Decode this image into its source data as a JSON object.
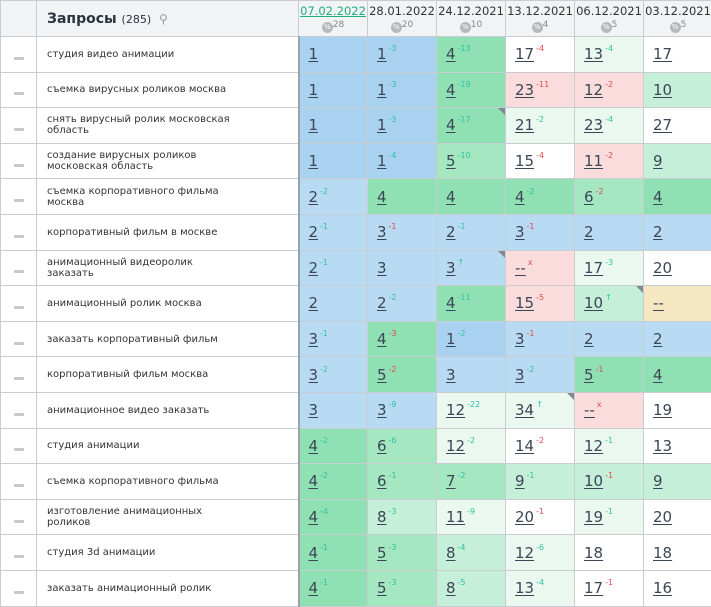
{
  "header": {
    "title": "Запросы",
    "count": "(285)",
    "search_icon": "search-icon",
    "dates": [
      {
        "label": "07.02.2022",
        "sup": "28"
      },
      {
        "label": "28.01.2022",
        "sup": "20"
      },
      {
        "label": "24.12.2021",
        "sup": "10"
      },
      {
        "label": "13.12.2021",
        "sup": "4"
      },
      {
        "label": "06.12.2021",
        "sup": "5"
      },
      {
        "label": "03.12.2021",
        "sup": "5"
      }
    ],
    "pct_symbol": "%"
  },
  "colors": {
    "up": "#2cc3a0",
    "down": "#e5484d",
    "active_date": "#1fae7a"
  },
  "rows": [
    {
      "q": "студия видео анимации",
      "cells": [
        [
          "1",
          "",
          "",
          "b1"
        ],
        [
          "1",
          "-3",
          "g",
          "b1"
        ],
        [
          "4",
          "-13",
          "g",
          "g1"
        ],
        [
          "17",
          "-4",
          "r",
          "w"
        ],
        [
          "13",
          "-4",
          "g",
          "p"
        ],
        [
          "17",
          "",
          "",
          "w"
        ]
      ]
    },
    {
      "q": "съемка вирусных роликов москва",
      "cells": [
        [
          "1",
          "",
          "",
          "b1"
        ],
        [
          "1",
          "-3",
          "g",
          "b1"
        ],
        [
          "4",
          "-19",
          "g",
          "g1"
        ],
        [
          "23",
          "-11",
          "r",
          "pk"
        ],
        [
          "12",
          "-2",
          "r",
          "pk"
        ],
        [
          "10",
          "",
          "",
          "g3"
        ]
      ]
    },
    {
      "q": "снять вирусный ролик московская область",
      "cells": [
        [
          "1",
          "",
          "",
          "b1"
        ],
        [
          "1",
          "-3",
          "g",
          "b1"
        ],
        [
          "4",
          "-17",
          "g",
          "g1",
          1
        ],
        [
          "21",
          "-2",
          "g",
          "p"
        ],
        [
          "23",
          "-4",
          "g",
          "p"
        ],
        [
          "27",
          "",
          "",
          "w"
        ]
      ]
    },
    {
      "q": "создание вирусных роликов московская область",
      "cells": [
        [
          "1",
          "",
          "",
          "b1"
        ],
        [
          "1",
          "-4",
          "g",
          "b1"
        ],
        [
          "5",
          "-10",
          "g",
          "g2"
        ],
        [
          "15",
          "-4",
          "r",
          "w"
        ],
        [
          "11",
          "-2",
          "r",
          "pk"
        ],
        [
          "9",
          "",
          "",
          "g3"
        ]
      ]
    },
    {
      "q": "съемка корпоративного фильма москва",
      "cells": [
        [
          "2",
          "-2",
          "g",
          "b2"
        ],
        [
          "4",
          "",
          "",
          "g1"
        ],
        [
          "4",
          "",
          "",
          "g1"
        ],
        [
          "4",
          "-2",
          "g",
          "g1"
        ],
        [
          "6",
          "-2",
          "r",
          "g2"
        ],
        [
          "4",
          "",
          "",
          "g1"
        ]
      ]
    },
    {
      "q": "корпоративный фильм в москве",
      "cells": [
        [
          "2",
          "-1",
          "g",
          "b2"
        ],
        [
          "3",
          "-1",
          "r",
          "b2"
        ],
        [
          "2",
          "-1",
          "g",
          "b2"
        ],
        [
          "3",
          "-1",
          "r",
          "b2"
        ],
        [
          "2",
          "",
          "",
          "b2"
        ],
        [
          "2",
          "",
          "",
          "b2"
        ]
      ]
    },
    {
      "q": "анимационный видеоролик заказать",
      "cells": [
        [
          "2",
          "-1",
          "g",
          "b2"
        ],
        [
          "3",
          "",
          "",
          "b2"
        ],
        [
          "3",
          "↑",
          "g",
          "b2",
          1
        ],
        [
          "--",
          "x",
          "r",
          "pk"
        ],
        [
          "17",
          "-3",
          "g",
          "p"
        ],
        [
          "20",
          "",
          "",
          "w"
        ]
      ]
    },
    {
      "q": "анимационный ролик москва",
      "cells": [
        [
          "2",
          "",
          "",
          "b2"
        ],
        [
          "2",
          "-2",
          "g",
          "b2"
        ],
        [
          "4",
          "-11",
          "g",
          "g1"
        ],
        [
          "15",
          "-5",
          "r",
          "pk"
        ],
        [
          "10",
          "↑",
          "g",
          "g3",
          1
        ],
        [
          "--",
          "",
          "",
          "y"
        ]
      ]
    },
    {
      "q": "заказать корпоративный фильм",
      "cells": [
        [
          "3",
          "-1",
          "g",
          "b2"
        ],
        [
          "4",
          "-3",
          "r",
          "g1"
        ],
        [
          "1",
          "-2",
          "g",
          "b1"
        ],
        [
          "3",
          "-1",
          "r",
          "b2"
        ],
        [
          "2",
          "",
          "",
          "b2"
        ],
        [
          "2",
          "",
          "",
          "b2"
        ]
      ]
    },
    {
      "q": "корпоративный фильм москва",
      "cells": [
        [
          "3",
          "-2",
          "g",
          "b2"
        ],
        [
          "5",
          "-2",
          "r",
          "g1"
        ],
        [
          "3",
          "",
          "",
          "b2"
        ],
        [
          "3",
          "-2",
          "g",
          "b2"
        ],
        [
          "5",
          "-1",
          "r",
          "g1"
        ],
        [
          "4",
          "",
          "",
          "g1"
        ]
      ]
    },
    {
      "q": "анимационное видео заказать",
      "cells": [
        [
          "3",
          "",
          "",
          "b2"
        ],
        [
          "3",
          "-9",
          "g",
          "b2"
        ],
        [
          "12",
          "-22",
          "g",
          "p"
        ],
        [
          "34",
          "↑",
          "g",
          "p",
          1
        ],
        [
          "--",
          "x",
          "r",
          "pk"
        ],
        [
          "19",
          "",
          "",
          "w"
        ]
      ]
    },
    {
      "q": "студия анимации",
      "cells": [
        [
          "4",
          "-2",
          "g",
          "g1"
        ],
        [
          "6",
          "-6",
          "g",
          "g2"
        ],
        [
          "12",
          "-2",
          "g",
          "p"
        ],
        [
          "14",
          "-2",
          "r",
          "w"
        ],
        [
          "12",
          "-1",
          "g",
          "p"
        ],
        [
          "13",
          "",
          "",
          "w"
        ]
      ]
    },
    {
      "q": "съемка корпоративного фильма",
      "cells": [
        [
          "4",
          "-2",
          "g",
          "g1"
        ],
        [
          "6",
          "-1",
          "g",
          "g2"
        ],
        [
          "7",
          "-2",
          "g",
          "g2"
        ],
        [
          "9",
          "-1",
          "g",
          "g3"
        ],
        [
          "10",
          "-1",
          "r",
          "g3"
        ],
        [
          "9",
          "",
          "",
          "g3"
        ]
      ]
    },
    {
      "q": "изготовление анимационных роликов",
      "cells": [
        [
          "4",
          "-4",
          "g",
          "g1"
        ],
        [
          "8",
          "-3",
          "g",
          "g3"
        ],
        [
          "11",
          "-9",
          "g",
          "p"
        ],
        [
          "20",
          "-1",
          "r",
          "w"
        ],
        [
          "19",
          "-1",
          "g",
          "p"
        ],
        [
          "20",
          "",
          "",
          "w"
        ]
      ]
    },
    {
      "q": "студия 3d анимации",
      "cells": [
        [
          "4",
          "-1",
          "g",
          "g1"
        ],
        [
          "5",
          "-3",
          "g",
          "g2"
        ],
        [
          "8",
          "-4",
          "g",
          "g3"
        ],
        [
          "12",
          "-6",
          "g",
          "p"
        ],
        [
          "18",
          "",
          "",
          "w"
        ],
        [
          "18",
          "",
          "",
          "w"
        ]
      ]
    },
    {
      "q": "заказать анимационный ролик",
      "cells": [
        [
          "4",
          "-1",
          "g",
          "g1"
        ],
        [
          "5",
          "-3",
          "g",
          "g2"
        ],
        [
          "8",
          "-5",
          "g",
          "g3"
        ],
        [
          "13",
          "-4",
          "g",
          "p"
        ],
        [
          "17",
          "-1",
          "r",
          "w"
        ],
        [
          "16",
          "",
          "",
          "w"
        ]
      ]
    }
  ]
}
